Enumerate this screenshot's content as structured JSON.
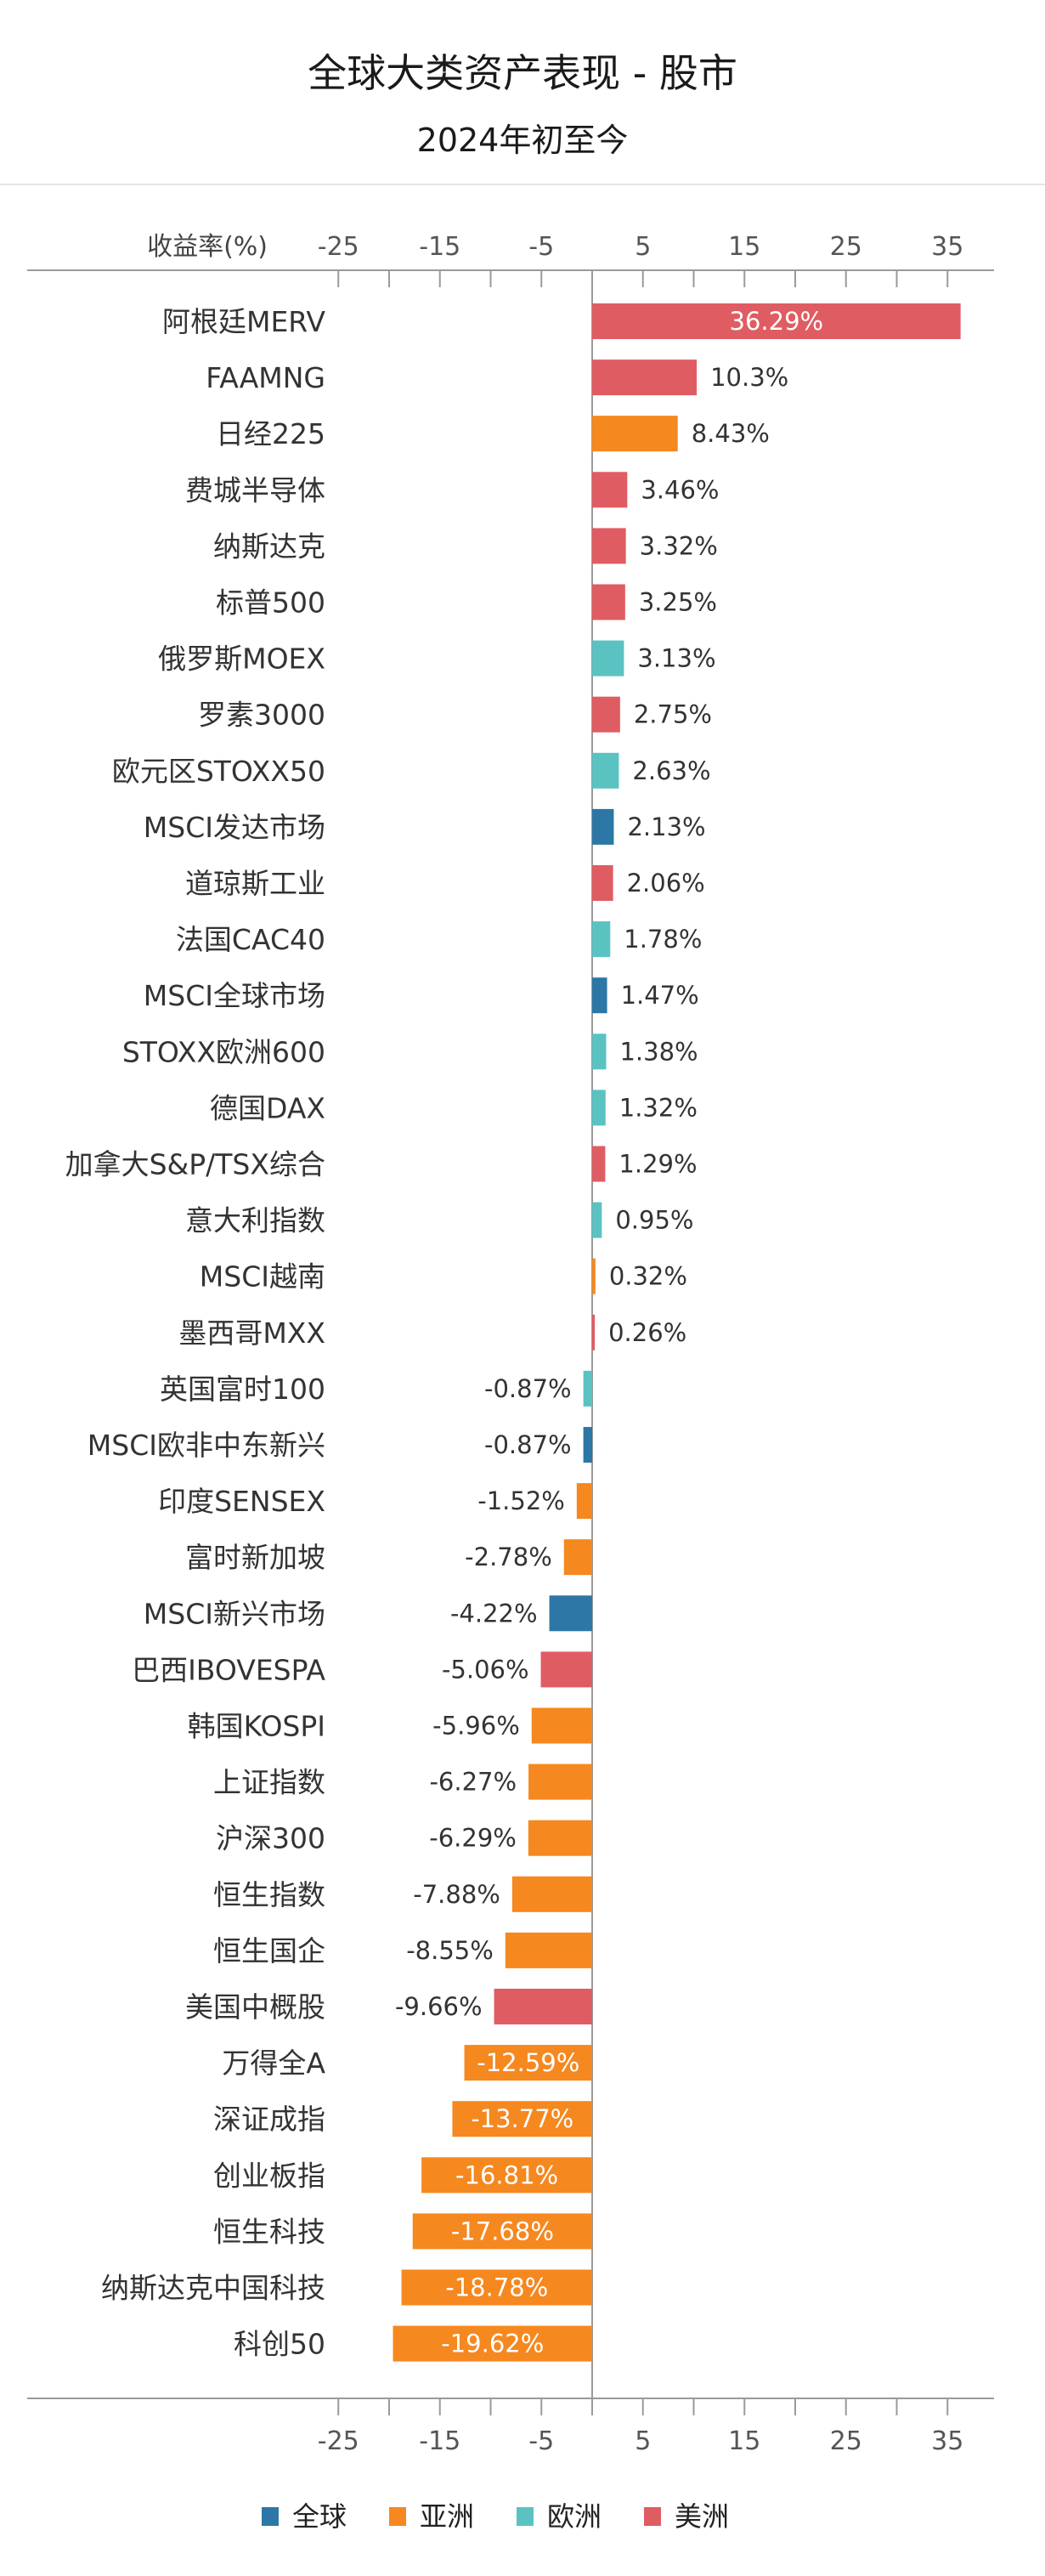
{
  "chart_data": {
    "type": "bar",
    "orientation": "horizontal",
    "title": "全球大类资产表现 - 股市",
    "subtitle": "2024年初至今",
    "ylabel": "收益率(%)",
    "xlim": [
      -25,
      35
    ],
    "ticks": [
      "-25",
      "-15",
      "-5",
      "5",
      "15",
      "25",
      "35"
    ],
    "tick_values": [
      -25,
      -15,
      -5,
      5,
      15,
      25,
      35
    ],
    "legend_position": "bottom",
    "legend": [
      {
        "name": "全球",
        "color": "#2d77a6"
      },
      {
        "name": "亚洲",
        "color": "#f5881f"
      },
      {
        "name": "欧洲",
        "color": "#5bc2c2"
      },
      {
        "name": "美洲",
        "color": "#e05c63"
      }
    ],
    "bars": [
      {
        "label": "阿根廷MERV",
        "value": 36.29,
        "display": "36.29%",
        "region": "美洲"
      },
      {
        "label": "FAAMNG",
        "value": 10.3,
        "display": "10.3%",
        "region": "美洲"
      },
      {
        "label": "日经225",
        "value": 8.43,
        "display": "8.43%",
        "region": "亚洲"
      },
      {
        "label": "费城半导体",
        "value": 3.46,
        "display": "3.46%",
        "region": "美洲"
      },
      {
        "label": "纳斯达克",
        "value": 3.32,
        "display": "3.32%",
        "region": "美洲"
      },
      {
        "label": "标普500",
        "value": 3.25,
        "display": "3.25%",
        "region": "美洲"
      },
      {
        "label": "俄罗斯MOEX",
        "value": 3.13,
        "display": "3.13%",
        "region": "欧洲"
      },
      {
        "label": "罗素3000",
        "value": 2.75,
        "display": "2.75%",
        "region": "美洲"
      },
      {
        "label": "欧元区STOXX50",
        "value": 2.63,
        "display": "2.63%",
        "region": "欧洲"
      },
      {
        "label": "MSCI发达市场",
        "value": 2.13,
        "display": "2.13%",
        "region": "全球"
      },
      {
        "label": "道琼斯工业",
        "value": 2.06,
        "display": "2.06%",
        "region": "美洲"
      },
      {
        "label": "法国CAC40",
        "value": 1.78,
        "display": "1.78%",
        "region": "欧洲"
      },
      {
        "label": "MSCI全球市场",
        "value": 1.47,
        "display": "1.47%",
        "region": "全球"
      },
      {
        "label": "STOXX欧洲600",
        "value": 1.38,
        "display": "1.38%",
        "region": "欧洲"
      },
      {
        "label": "德国DAX",
        "value": 1.32,
        "display": "1.32%",
        "region": "欧洲"
      },
      {
        "label": "加拿大S&P/TSX综合",
        "value": 1.29,
        "display": "1.29%",
        "region": "美洲"
      },
      {
        "label": "意大利指数",
        "value": 0.95,
        "display": "0.95%",
        "region": "欧洲"
      },
      {
        "label": "MSCI越南",
        "value": 0.32,
        "display": "0.32%",
        "region": "亚洲"
      },
      {
        "label": "墨西哥MXX",
        "value": 0.26,
        "display": "0.26%",
        "region": "美洲"
      },
      {
        "label": "英国富时100",
        "value": -0.87,
        "display": "-0.87%",
        "region": "欧洲"
      },
      {
        "label": "MSCI欧非中东新兴",
        "value": -0.87,
        "display": "-0.87%",
        "region": "全球"
      },
      {
        "label": "印度SENSEX",
        "value": -1.52,
        "display": "-1.52%",
        "region": "亚洲"
      },
      {
        "label": "富时新加坡",
        "value": -2.78,
        "display": "-2.78%",
        "region": "亚洲"
      },
      {
        "label": "MSCI新兴市场",
        "value": -4.22,
        "display": "-4.22%",
        "region": "全球"
      },
      {
        "label": "巴西IBOVESPA",
        "value": -5.06,
        "display": "-5.06%",
        "region": "美洲"
      },
      {
        "label": "韩国KOSPI",
        "value": -5.96,
        "display": "-5.96%",
        "region": "亚洲"
      },
      {
        "label": "上证指数",
        "value": -6.27,
        "display": "-6.27%",
        "region": "亚洲"
      },
      {
        "label": "沪深300",
        "value": -6.29,
        "display": "-6.29%",
        "region": "亚洲"
      },
      {
        "label": "恒生指数",
        "value": -7.88,
        "display": "-7.88%",
        "region": "亚洲"
      },
      {
        "label": "恒生国企",
        "value": -8.55,
        "display": "-8.55%",
        "region": "亚洲"
      },
      {
        "label": "美国中概股",
        "value": -9.66,
        "display": "-9.66%",
        "region": "美洲"
      },
      {
        "label": "万得全A",
        "value": -12.59,
        "display": "-12.59%",
        "region": "亚洲"
      },
      {
        "label": "深证成指",
        "value": -13.77,
        "display": "-13.77%",
        "region": "亚洲"
      },
      {
        "label": "创业板指",
        "value": -16.81,
        "display": "-16.81%",
        "region": "亚洲"
      },
      {
        "label": "恒生科技",
        "value": -17.68,
        "display": "-17.68%",
        "region": "亚洲"
      },
      {
        "label": "纳斯达克中国科技",
        "value": -18.78,
        "display": "-18.78%",
        "region": "亚洲"
      },
      {
        "label": "科创50",
        "value": -19.62,
        "display": "-19.62%",
        "region": "亚洲"
      }
    ]
  }
}
